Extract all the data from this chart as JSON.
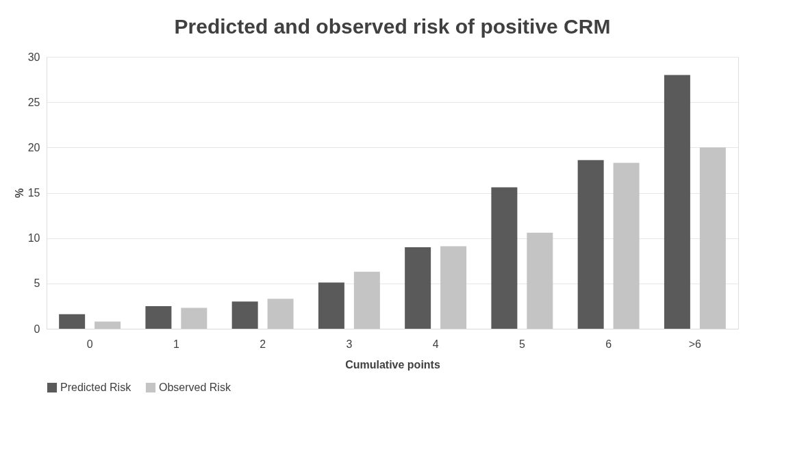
{
  "chart_data": {
    "type": "bar",
    "title": "Predicted and observed risk of positive CRM",
    "xlabel": "Cumulative points",
    "ylabel": "%",
    "categories": [
      "0",
      "1",
      "2",
      "3",
      "4",
      "5",
      "6",
      ">6"
    ],
    "series": [
      {
        "name": "Predicted Risk",
        "color": "#5a5a5a",
        "values": [
          1.6,
          2.5,
          3.0,
          5.1,
          9.0,
          15.6,
          18.6,
          28.0
        ]
      },
      {
        "name": "Observed Risk",
        "color": "#c4c4c4",
        "values": [
          0.8,
          2.3,
          3.3,
          6.3,
          9.1,
          10.6,
          18.3,
          20.0
        ]
      }
    ],
    "ylim": [
      0,
      30
    ],
    "yticks": [
      0,
      5,
      10,
      15,
      20,
      25,
      30
    ],
    "grid": "y",
    "legend": "bottom"
  }
}
